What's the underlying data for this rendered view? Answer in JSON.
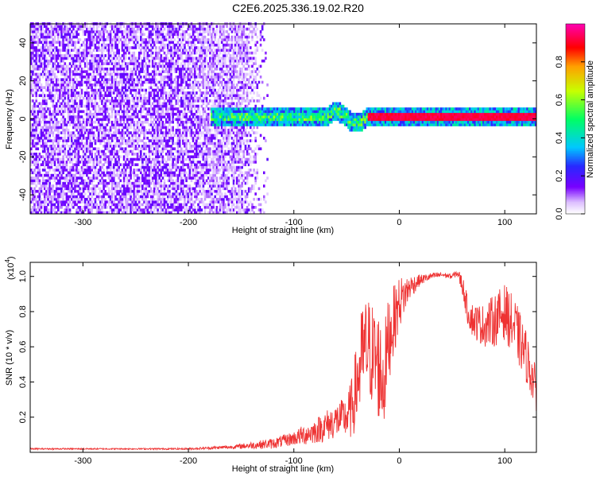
{
  "title": "C2E6.2025.336.19.02.R20",
  "colors": {
    "spectrum_low": "#6a00ff",
    "snr_line": "#ee3333",
    "axis": "#000000"
  },
  "chart_data": [
    {
      "type": "heatmap",
      "xlabel": "Height of straight line (km)",
      "ylabel": "Frequency (Hz)",
      "xlim": [
        -350,
        130
      ],
      "ylim": [
        -50,
        50
      ],
      "xticks": [
        "-300",
        "-200",
        "-100",
        "0",
        "100"
      ],
      "yticks": [
        "-40",
        "-20",
        "0",
        "20",
        "40"
      ],
      "colorbar": {
        "label": "Normalized spectral amplitude",
        "range": [
          0,
          1
        ],
        "ticks": [
          "0.0",
          "0.2",
          "0.4",
          "0.6",
          "0.8"
        ],
        "colormap": "rainbow (white-violet-blue-cyan-green-yellow-red-magenta)"
      },
      "features": {
        "noise_region_x": [
          -350,
          -150
        ],
        "noise_region_y": [
          -50,
          50
        ],
        "signal_band_x": [
          -180,
          130
        ],
        "signal_band_center_hz": 0,
        "signal_band_halfwidth_hz": 5,
        "peak_amplitude_region_x": [
          -30,
          130
        ]
      }
    },
    {
      "type": "line",
      "xlabel": "Height of straight line (km)",
      "ylabel": "SNR (10 * v/v)",
      "yscale_label": "(x10",
      "yscale_exp": "4",
      "yscale_close": ")",
      "xlim": [
        -350,
        130
      ],
      "ylim": [
        0,
        1.08
      ],
      "xticks": [
        "-300",
        "-200",
        "-100",
        "0",
        "100"
      ],
      "yticks": [
        "0.2",
        "0.4",
        "0.6",
        "0.8",
        "1.0"
      ],
      "series": [
        {
          "x": [
            -350,
            -300,
            -250,
            -200,
            -180,
            -160,
            -150,
            -140,
            -120,
            -100,
            -90,
            -80,
            -70,
            -60,
            -50,
            -45,
            -40,
            -35,
            -30,
            -25,
            -20,
            -15,
            -10,
            -5,
            0,
            10,
            20,
            30,
            40,
            50,
            55,
            60,
            65,
            70,
            80,
            90,
            100,
            110,
            120,
            130
          ],
          "y": [
            0.02,
            0.02,
            0.02,
            0.02,
            0.025,
            0.03,
            0.035,
            0.04,
            0.05,
            0.08,
            0.1,
            0.12,
            0.15,
            0.18,
            0.2,
            0.25,
            0.4,
            0.55,
            0.6,
            0.55,
            0.5,
            0.4,
            0.65,
            0.75,
            0.85,
            0.94,
            0.98,
            1.0,
            1.01,
            1.0,
            1.02,
            0.95,
            0.8,
            0.75,
            0.72,
            0.75,
            0.8,
            0.7,
            0.55,
            0.35
          ],
          "noise": [
            0.004,
            0.004,
            0.004,
            0.005,
            0.008,
            0.01,
            0.015,
            0.02,
            0.03,
            0.04,
            0.06,
            0.07,
            0.09,
            0.1,
            0.12,
            0.18,
            0.25,
            0.3,
            0.3,
            0.3,
            0.32,
            0.3,
            0.25,
            0.2,
            0.15,
            0.07,
            0.03,
            0.02,
            0.015,
            0.015,
            0.02,
            0.06,
            0.08,
            0.1,
            0.12,
            0.15,
            0.16,
            0.17,
            0.15,
            0.12
          ]
        }
      ]
    }
  ]
}
